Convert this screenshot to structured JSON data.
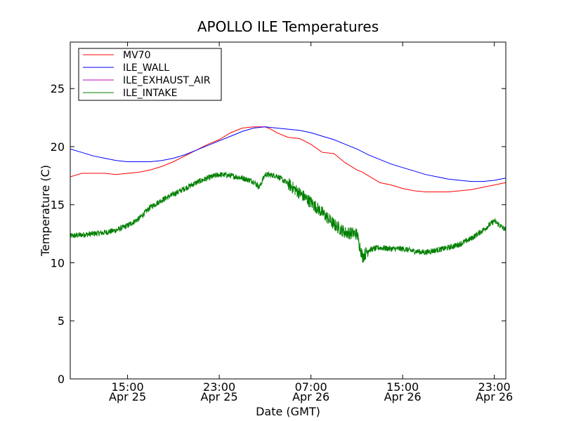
{
  "chart_data": {
    "type": "line",
    "title": "APOLLO ILE Temperatures",
    "xlabel": "Date (GMT)",
    "ylabel": "Temperature (C)",
    "x_unit": "hours",
    "xlim": [
      "2025-04-25T10:00",
      "2025-04-27T00:00"
    ],
    "ylim": [
      0,
      29
    ],
    "yticks": [
      0,
      5,
      10,
      15,
      20,
      25
    ],
    "xticks": [
      {
        "x": "2025-04-25T15:00",
        "time": "15:00",
        "date": "Apr 25"
      },
      {
        "x": "2025-04-25T23:00",
        "time": "23:00",
        "date": "Apr 25"
      },
      {
        "x": "2025-04-26T07:00",
        "time": "07:00",
        "date": "Apr 26"
      },
      {
        "x": "2025-04-26T15:00",
        "time": "15:00",
        "date": "Apr 26"
      },
      {
        "x": "2025-04-26T23:00",
        "time": "23:00",
        "date": "Apr 26"
      }
    ],
    "grid": false,
    "legend_position": "top-left",
    "series": [
      {
        "name": "MV70",
        "color": "#ff0000",
        "x": [
          "2025-04-25T10:00",
          "2025-04-25T11:00",
          "2025-04-25T12:00",
          "2025-04-25T13:00",
          "2025-04-25T14:00",
          "2025-04-25T15:00",
          "2025-04-25T16:00",
          "2025-04-25T17:00",
          "2025-04-25T18:00",
          "2025-04-25T19:00",
          "2025-04-25T20:00",
          "2025-04-25T21:00",
          "2025-04-25T22:00",
          "2025-04-25T23:00",
          "2025-04-26T00:00",
          "2025-04-26T01:00",
          "2025-04-26T02:00",
          "2025-04-26T03:00",
          "2025-04-26T03:30",
          "2025-04-26T04:00",
          "2025-04-26T05:00",
          "2025-04-26T06:00",
          "2025-04-26T07:00",
          "2025-04-26T08:00",
          "2025-04-26T09:00",
          "2025-04-26T10:00",
          "2025-04-26T11:00",
          "2025-04-26T11:30",
          "2025-04-26T12:00",
          "2025-04-26T13:00",
          "2025-04-26T14:00",
          "2025-04-26T15:00",
          "2025-04-26T16:00",
          "2025-04-26T17:00",
          "2025-04-26T18:00",
          "2025-04-26T19:00",
          "2025-04-26T20:00",
          "2025-04-26T21:00",
          "2025-04-26T22:00",
          "2025-04-26T23:00",
          "2025-04-27T00:00"
        ],
        "y": [
          17.4,
          17.7,
          17.7,
          17.7,
          17.6,
          17.7,
          17.8,
          18.0,
          18.3,
          18.7,
          19.2,
          19.7,
          20.2,
          20.6,
          21.2,
          21.6,
          21.7,
          21.7,
          21.5,
          21.2,
          20.8,
          20.7,
          20.2,
          19.5,
          19.4,
          18.6,
          18.0,
          17.8,
          17.5,
          16.9,
          16.7,
          16.4,
          16.2,
          16.1,
          16.1,
          16.1,
          16.2,
          16.3,
          16.5,
          16.7,
          16.9
        ]
      },
      {
        "name": "ILE_WALL",
        "color": "#0000ff",
        "x": [
          "2025-04-25T10:00",
          "2025-04-25T11:00",
          "2025-04-25T12:00",
          "2025-04-25T13:00",
          "2025-04-25T14:00",
          "2025-04-25T15:00",
          "2025-04-25T16:00",
          "2025-04-25T17:00",
          "2025-04-25T18:00",
          "2025-04-25T19:00",
          "2025-04-25T20:00",
          "2025-04-25T21:00",
          "2025-04-25T22:00",
          "2025-04-25T23:00",
          "2025-04-26T00:00",
          "2025-04-26T01:00",
          "2025-04-26T02:00",
          "2025-04-26T03:00",
          "2025-04-26T04:00",
          "2025-04-26T05:00",
          "2025-04-26T06:00",
          "2025-04-26T07:00",
          "2025-04-26T08:00",
          "2025-04-26T09:00",
          "2025-04-26T10:00",
          "2025-04-26T11:00",
          "2025-04-26T12:00",
          "2025-04-26T13:00",
          "2025-04-26T14:00",
          "2025-04-26T15:00",
          "2025-04-26T16:00",
          "2025-04-26T17:00",
          "2025-04-26T18:00",
          "2025-04-26T19:00",
          "2025-04-26T20:00",
          "2025-04-26T21:00",
          "2025-04-26T22:00",
          "2025-04-26T23:00",
          "2025-04-27T00:00"
        ],
        "y": [
          19.8,
          19.5,
          19.2,
          19.0,
          18.8,
          18.7,
          18.7,
          18.7,
          18.8,
          19.0,
          19.3,
          19.7,
          20.1,
          20.5,
          20.9,
          21.3,
          21.6,
          21.7,
          21.6,
          21.5,
          21.4,
          21.2,
          20.9,
          20.6,
          20.2,
          19.8,
          19.3,
          18.9,
          18.5,
          18.2,
          17.9,
          17.6,
          17.4,
          17.2,
          17.1,
          17.0,
          17.0,
          17.1,
          17.3
        ]
      },
      {
        "name": "ILE_EXHAUST_AIR",
        "color": "#bf00bf",
        "x": [],
        "y": []
      },
      {
        "name": "ILE_INTAKE",
        "color": "#008000",
        "x": [
          "2025-04-25T10:00",
          "2025-04-25T11:00",
          "2025-04-25T12:00",
          "2025-04-25T13:00",
          "2025-04-25T14:00",
          "2025-04-25T15:00",
          "2025-04-25T16:00",
          "2025-04-25T17:00",
          "2025-04-25T18:00",
          "2025-04-25T19:00",
          "2025-04-25T20:00",
          "2025-04-25T21:00",
          "2025-04-25T22:00",
          "2025-04-25T23:00",
          "2025-04-26T00:00",
          "2025-04-26T01:00",
          "2025-04-26T02:00",
          "2025-04-26T02:30",
          "2025-04-26T03:00",
          "2025-04-26T04:00",
          "2025-04-26T05:00",
          "2025-04-26T06:00",
          "2025-04-26T07:00",
          "2025-04-26T08:00",
          "2025-04-26T09:00",
          "2025-04-26T10:00",
          "2025-04-26T11:00",
          "2025-04-26T11:30",
          "2025-04-26T12:00",
          "2025-04-26T13:00",
          "2025-04-26T14:00",
          "2025-04-26T15:00",
          "2025-04-26T16:00",
          "2025-04-26T17:00",
          "2025-04-26T18:00",
          "2025-04-26T19:00",
          "2025-04-26T20:00",
          "2025-04-26T21:00",
          "2025-04-26T22:00",
          "2025-04-26T23:00",
          "2025-04-27T00:00"
        ],
        "y": [
          12.3,
          12.4,
          12.5,
          12.6,
          12.8,
          13.2,
          13.8,
          14.8,
          15.4,
          15.9,
          16.4,
          16.9,
          17.3,
          17.6,
          17.5,
          17.3,
          17.0,
          16.5,
          17.6,
          17.5,
          16.8,
          16.0,
          15.2,
          14.3,
          13.3,
          12.6,
          12.5,
          10.5,
          11.1,
          11.3,
          11.2,
          11.2,
          11.0,
          10.9,
          11.1,
          11.3,
          11.6,
          12.1,
          12.8,
          13.6,
          12.8
        ]
      }
    ]
  }
}
